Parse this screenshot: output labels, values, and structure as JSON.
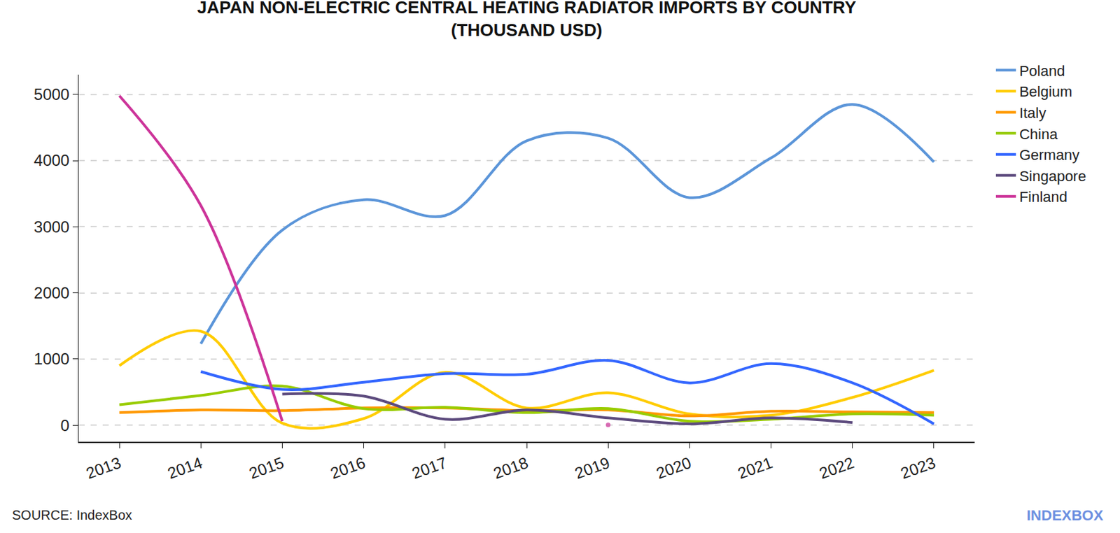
{
  "chart_data": {
    "type": "line",
    "title": "JAPAN NON-ELECTRIC CENTRAL HEATING RADIATOR IMPORTS BY COUNTRY\n(THOUSAND USD)",
    "x": [
      2013,
      2014,
      2015,
      2016,
      2017,
      2018,
      2019,
      2020,
      2021,
      2022,
      2023
    ],
    "series": [
      {
        "name": "Poland",
        "color": "#5b95d9",
        "values": [
          null,
          1230,
          2950,
          3410,
          3170,
          4300,
          4340,
          3440,
          4040,
          4850,
          3980
        ]
      },
      {
        "name": "Belgium",
        "color": "#ffcc00",
        "values": [
          900,
          1420,
          30,
          100,
          800,
          260,
          490,
          170,
          150,
          420,
          830
        ]
      },
      {
        "name": "Italy",
        "color": "#ff9900",
        "values": [
          190,
          230,
          220,
          260,
          260,
          220,
          230,
          140,
          210,
          200,
          190
        ]
      },
      {
        "name": "China",
        "color": "#99cc00",
        "values": [
          310,
          450,
          590,
          250,
          270,
          190,
          250,
          60,
          90,
          170,
          150
        ]
      },
      {
        "name": "Germany",
        "color": "#3366ff",
        "values": [
          null,
          810,
          540,
          650,
          780,
          770,
          980,
          640,
          930,
          640,
          20
        ]
      },
      {
        "name": "Singapore",
        "color": "#5c4a7d",
        "values": [
          null,
          null,
          470,
          440,
          90,
          230,
          110,
          20,
          110,
          40,
          null
        ]
      },
      {
        "name": "Finland",
        "color": "#cc3399",
        "values": [
          4980,
          3320,
          60,
          null,
          null,
          null,
          5,
          null,
          null,
          null,
          null
        ]
      }
    ],
    "xlim": [
      2012.5,
      2023.5
    ],
    "xticks": [
      2013,
      2014,
      2015,
      2016,
      2017,
      2018,
      2019,
      2020,
      2021,
      2022,
      2023
    ],
    "ylim": [
      -250,
      5300
    ],
    "yticks": [
      0,
      1000,
      2000,
      3000,
      4000,
      5000
    ],
    "grid": true,
    "legend": "right",
    "line_style": "spline",
    "annotations": [
      "SOURCE: IndexBox",
      "INDEXBOX"
    ]
  }
}
